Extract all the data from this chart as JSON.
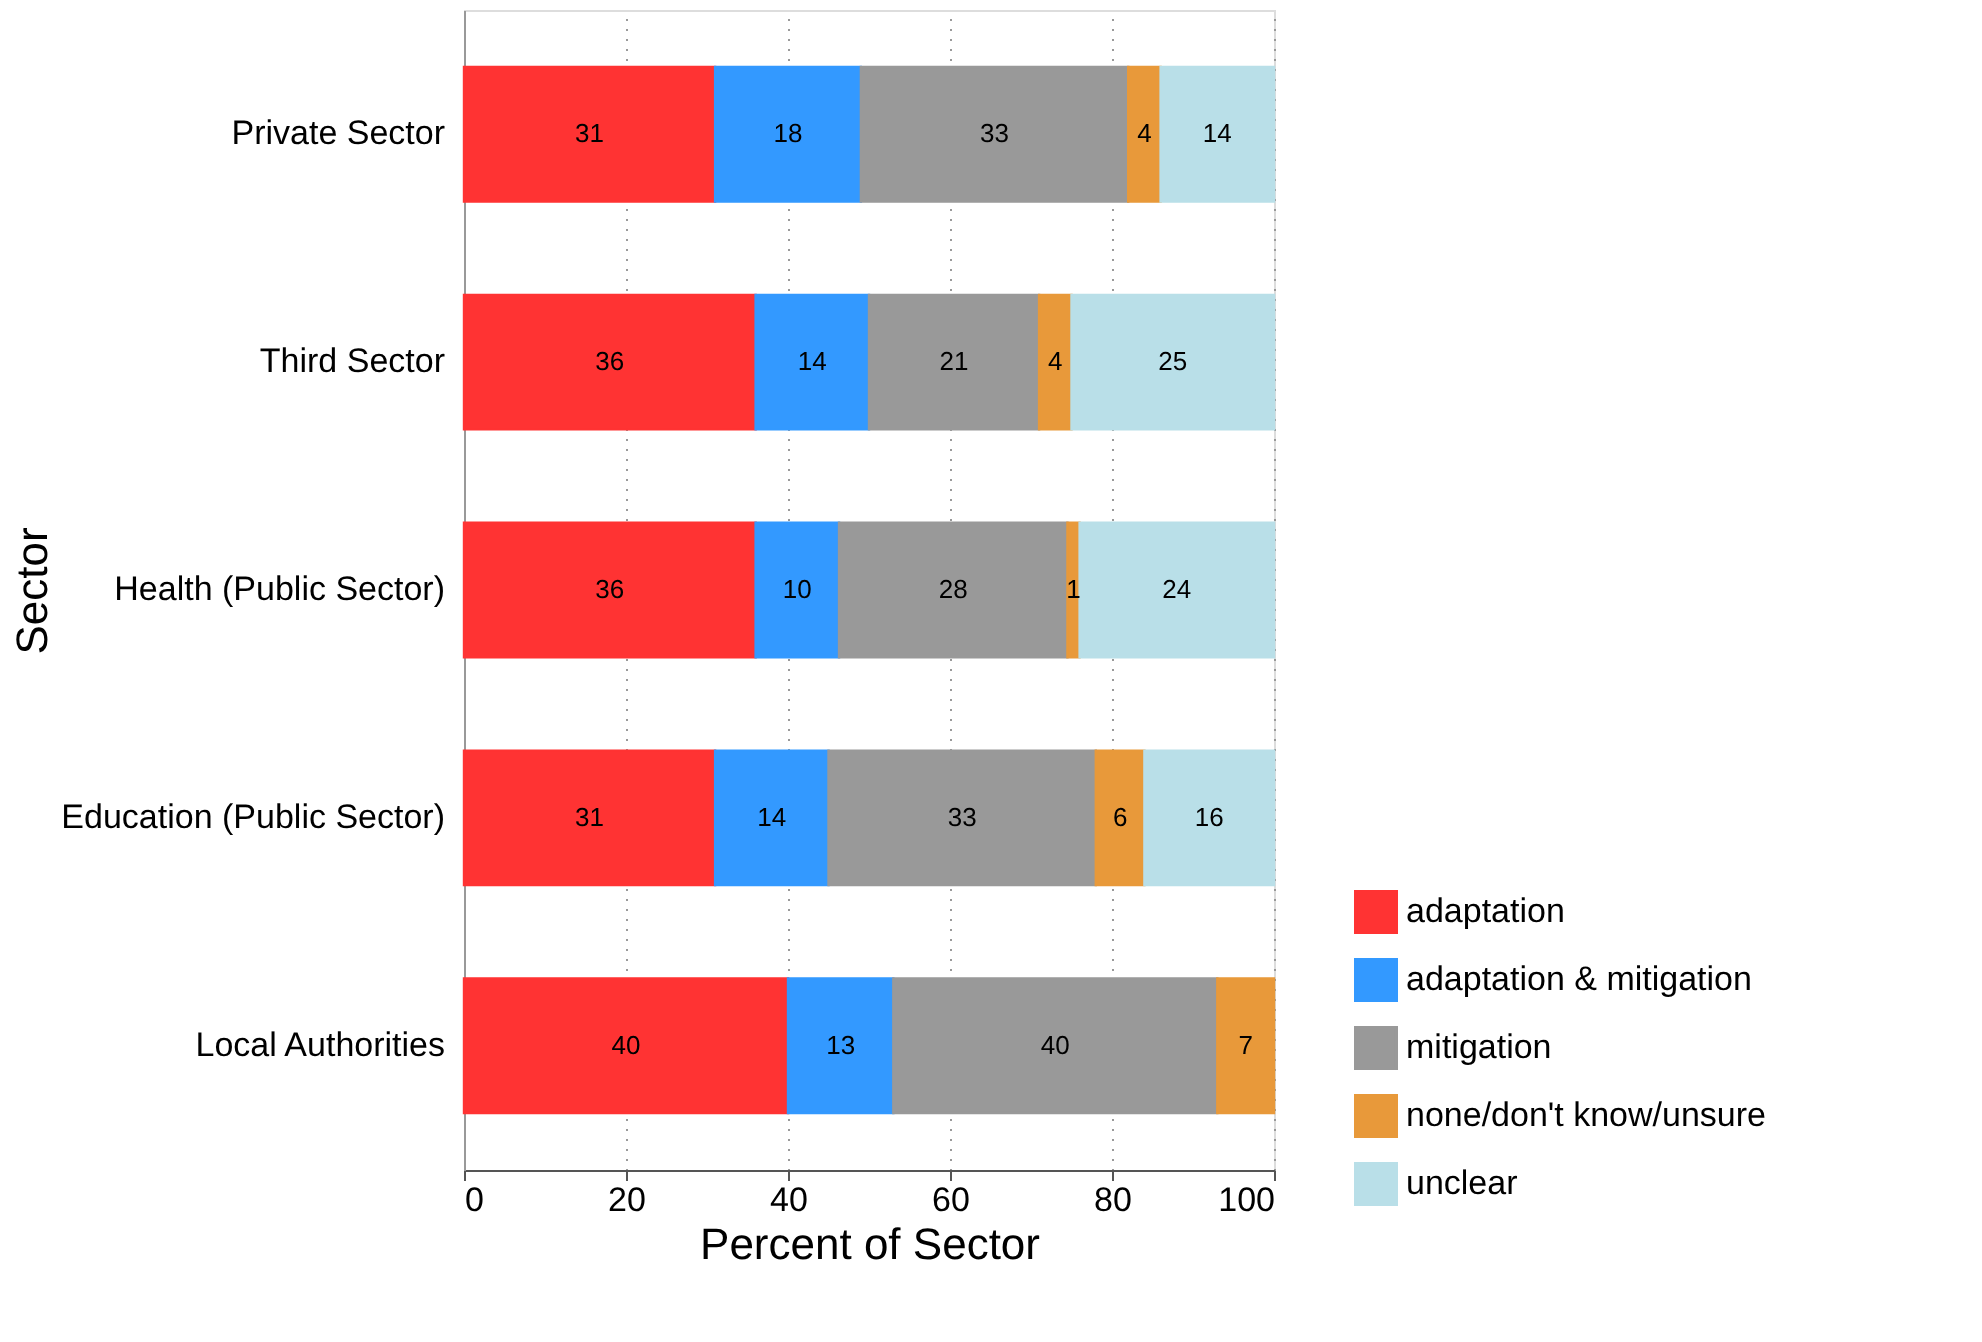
{
  "chart_data": {
    "type": "bar",
    "orientation": "horizontal",
    "stacked": true,
    "xlabel": "Percent of Sector",
    "ylabel": "Sector",
    "categories": [
      "Private Sector",
      "Third Sector",
      "Health (Public Sector)",
      "Education (Public Sector)",
      "Local Authorities"
    ],
    "series": [
      {
        "name": "adaptation",
        "color": "#ff3333",
        "values": [
          31,
          36,
          36,
          31,
          40
        ],
        "value_labels": [
          "31",
          "36",
          "36",
          "31",
          "40"
        ]
      },
      {
        "name": "adaptation & mitigation",
        "color": "#3399ff",
        "values": [
          18,
          14,
          10.3,
          14,
          13
        ],
        "value_labels": [
          "18",
          "14",
          "10",
          "14",
          "13"
        ]
      },
      {
        "name": "mitigation",
        "color": "#999999",
        "values": [
          33,
          21,
          28.2,
          33,
          40
        ],
        "value_labels": [
          "33",
          "21",
          "28",
          "33",
          "40"
        ]
      },
      {
        "name": "none/don't know/unsure",
        "color": "#e8993a",
        "values": [
          4,
          4,
          1.5,
          6,
          7
        ],
        "value_labels": [
          "4",
          "4",
          "1",
          "6",
          "7"
        ]
      },
      {
        "name": "unclear",
        "color": "#b9dfe8",
        "values": [
          14,
          25,
          24,
          16,
          null
        ],
        "value_labels": [
          "14",
          "25",
          "24",
          "16",
          null
        ]
      }
    ],
    "xlim": [
      0,
      100
    ],
    "xticks": [
      0,
      20,
      40,
      60,
      80,
      100
    ],
    "grid": "x",
    "legend": "bottom right"
  }
}
